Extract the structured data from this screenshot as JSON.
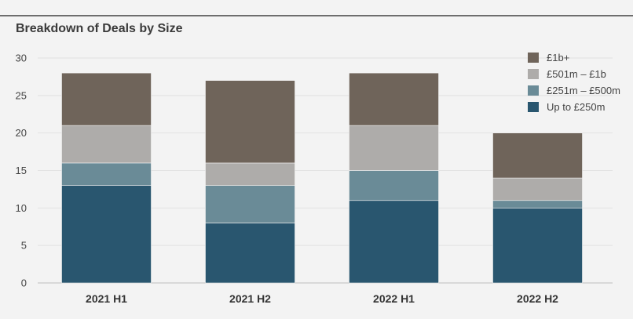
{
  "chart_data": {
    "type": "bar",
    "stacked": true,
    "title": "Breakdown of Deals by Size",
    "categories": [
      "2021 H1",
      "2021 H2",
      "2022 H1",
      "2022 H2"
    ],
    "series": [
      {
        "name": "Up to £250m",
        "color": "#29566f",
        "values": [
          13,
          8,
          11,
          10
        ]
      },
      {
        "name": "£251m – £500m",
        "color": "#6a8b97",
        "values": [
          3,
          5,
          4,
          1
        ]
      },
      {
        "name": "£501m – £1b",
        "color": "#aeacaa",
        "values": [
          5,
          3,
          6,
          3
        ]
      },
      {
        "name": "£1b+",
        "color": "#6f645a",
        "values": [
          7,
          11,
          7,
          6
        ]
      }
    ],
    "ylim": [
      0,
      30
    ],
    "yticks": [
      "0",
      "5",
      "10",
      "15",
      "20",
      "25",
      "30"
    ],
    "grid": true,
    "legend_position": "top-right",
    "legend_order": [
      "£1b+",
      "£501m – £1b",
      "£251m – £500m",
      "Up to £250m"
    ]
  }
}
